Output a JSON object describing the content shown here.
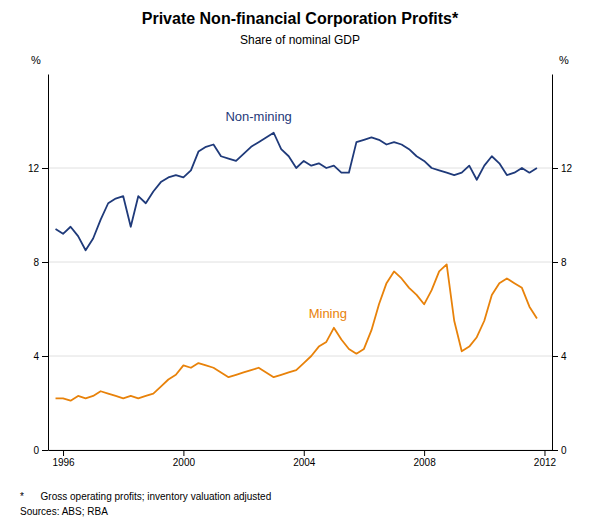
{
  "chart_data": {
    "type": "line",
    "title": "Private Non-financial Corporation Profits*",
    "subtitle": "Share of nominal GDP",
    "y_label": "%",
    "y2_label": "%",
    "footnotes": [
      "*      Gross operating profits; inventory valuation adjusted",
      "Sources: ABS; RBA"
    ],
    "grid": true,
    "xlim": [
      1995.5,
      2012.25
    ],
    "xticks": [
      1996,
      2000,
      2004,
      2008,
      2012
    ],
    "ylim": [
      0,
      16
    ],
    "yticks": [
      0,
      4,
      8,
      12
    ],
    "y2lim": [
      0,
      16
    ],
    "y2ticks": [
      0,
      4,
      8,
      12
    ],
    "x": [
      1995.75,
      1996.0,
      1996.25,
      1996.5,
      1996.75,
      1997.0,
      1997.25,
      1997.5,
      1997.75,
      1998.0,
      1998.25,
      1998.5,
      1998.75,
      1999.0,
      1999.25,
      1999.5,
      1999.75,
      2000.0,
      2000.25,
      2000.5,
      2000.75,
      2001.0,
      2001.25,
      2001.5,
      2001.75,
      2002.0,
      2002.25,
      2002.5,
      2002.75,
      2003.0,
      2003.25,
      2003.5,
      2003.75,
      2004.0,
      2004.25,
      2004.5,
      2004.75,
      2005.0,
      2005.25,
      2005.5,
      2005.75,
      2006.0,
      2006.25,
      2006.5,
      2006.75,
      2007.0,
      2007.25,
      2007.5,
      2007.75,
      2008.0,
      2008.25,
      2008.5,
      2008.75,
      2009.0,
      2009.25,
      2009.5,
      2009.75,
      2010.0,
      2010.25,
      2010.5,
      2010.75,
      2011.0,
      2011.25,
      2011.5,
      2011.75
    ],
    "series": [
      {
        "color": "#1f3a7a",
        "values": [
          9.4,
          9.2,
          9.5,
          9.1,
          8.5,
          9.0,
          9.8,
          10.5,
          10.7,
          10.8,
          9.5,
          10.8,
          10.5,
          11.0,
          11.4,
          11.6,
          11.7,
          11.6,
          11.9,
          12.7,
          12.9,
          13.0,
          12.5,
          12.4,
          12.3,
          12.6,
          12.9,
          13.1,
          13.3,
          13.5,
          12.8,
          12.5,
          12.0,
          12.3,
          12.1,
          12.2,
          12.0,
          12.1,
          11.8,
          11.8,
          13.1,
          13.2,
          13.3,
          13.2,
          13.0,
          13.1,
          13.0,
          12.8,
          12.5,
          12.3,
          12.0,
          11.9,
          11.8,
          11.7,
          11.8,
          12.1,
          11.5,
          12.1,
          12.5,
          12.2,
          11.7,
          11.8,
          12.0,
          11.8,
          12.0
        ]
      },
      {
        "color": "#e8820a",
        "values": [
          2.2,
          2.2,
          2.1,
          2.3,
          2.2,
          2.3,
          2.5,
          2.4,
          2.3,
          2.2,
          2.3,
          2.2,
          2.3,
          2.4,
          2.7,
          3.0,
          3.2,
          3.6,
          3.5,
          3.7,
          3.6,
          3.5,
          3.3,
          3.1,
          3.2,
          3.3,
          3.4,
          3.5,
          3.3,
          3.1,
          3.2,
          3.3,
          3.4,
          3.7,
          4.0,
          4.4,
          4.6,
          5.2,
          4.7,
          4.3,
          4.1,
          4.3,
          5.1,
          6.2,
          7.1,
          7.6,
          7.3,
          6.9,
          6.6,
          6.2,
          6.8,
          7.6,
          7.9,
          5.5,
          4.2,
          4.4,
          4.8,
          5.5,
          6.6,
          7.1,
          7.3,
          7.1,
          6.9,
          6.1,
          5.6
        ]
      }
    ],
    "annotations": [
      {
        "text": "Non-mining",
        "x": 2002.5,
        "y": 14.0,
        "color": "#1f3a7a"
      },
      {
        "text": "Mining",
        "x": 2004.8,
        "y": 5.6,
        "color": "#e8820a"
      }
    ]
  }
}
